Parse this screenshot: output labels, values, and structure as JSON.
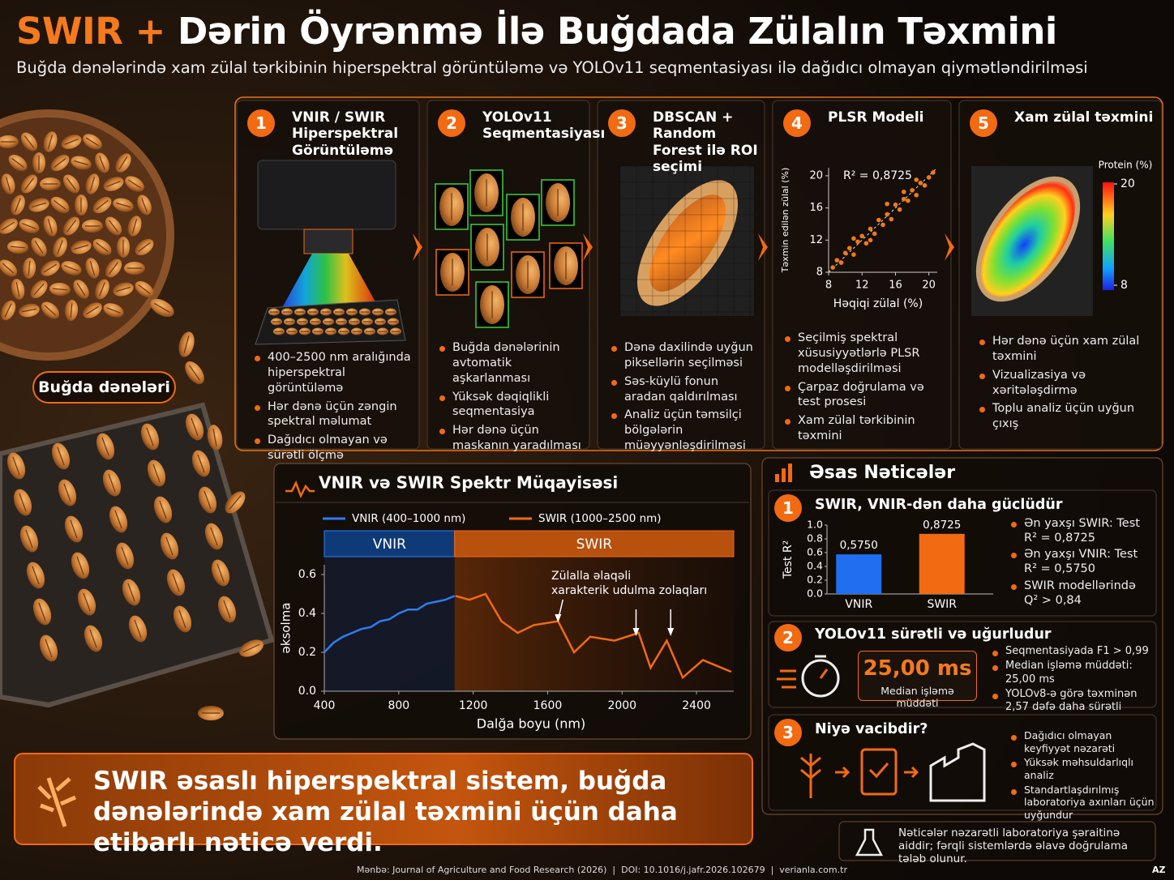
{
  "header": {
    "accent": "SWIR +",
    "title": "Dərin Öyrənmə İlə Buğdada Zülalın Təxmini",
    "subtitle": "Buğda dənələrində xam zülal tərkibinin hiperspektral görüntüləmə və YOLOv11 seqmentasiyası ilə dağıdıcı olmayan qiymətləndirilməsi"
  },
  "photo_label": "Buğda dənələri",
  "steps": [
    {
      "number": 1,
      "title": "VNIR / SWIR Hiperspektral Görüntüləmə",
      "bullets": [
        "400–2500 nm aralığında hiperspektral görüntüləmə",
        "Hər dənə üçün zəngin spektral məlumat",
        "Dağıdıcı olmayan və sürətli ölçmə"
      ]
    },
    {
      "number": 2,
      "title": "YOLOv11 Seqmentasiyası",
      "bullets": [
        "Buğda dənələrinin avtomatik aşkarlanması",
        "Yüksək dəqiqlikli seqmentasiya",
        "Hər dənə üçün maskanın yaradılması"
      ]
    },
    {
      "number": 3,
      "title": "DBSCAN + Random Forest ilə ROI seçimi",
      "bullets": [
        "Dənə daxilində uyğun piksellərin seçilməsi",
        "Səs-küylü fonun aradan qaldırılması",
        "Analiz üçün təmsilçi bölgələrin müəyyənləşdirilməsi"
      ]
    },
    {
      "number": 4,
      "title": "PLSR Modeli",
      "bullets": [
        "Seçilmiş spektral xüsusiyyətlərlə PLSR modelləşdirilməsi",
        "Çarpaz doğrulama və test prosesi",
        "Xam zülal tərkibinin təxmini"
      ]
    },
    {
      "number": 5,
      "title": "Xam zülal təxmini",
      "bullets": [
        "Hər dənə üçün xam zülal təxmini",
        "Vizualizasiya və xəritələşdirmə",
        "Toplu analiz üçün uyğun çıxış"
      ]
    }
  ],
  "colorbar": {
    "title": "Protein (%)",
    "lim": [
      8,
      20
    ],
    "ticks": [
      8,
      20
    ]
  },
  "chart_data": [
    {
      "type": "scatter",
      "annotation": "R² = 0,8725",
      "xlabel": "Həqiqi zülal (%)",
      "ylabel": "Təxmin edilən zülal (%)",
      "color": "#f07a1a",
      "x": [
        8.5,
        9,
        9.5,
        10,
        10.5,
        11,
        11.5,
        12,
        12.5,
        13,
        13.5,
        14,
        14.5,
        15,
        15.5,
        16,
        16.5,
        17,
        17.5,
        18,
        18.5,
        19,
        19.5,
        20,
        20.5,
        13,
        11,
        17,
        15,
        18.5
      ],
      "values": [
        8.6,
        9.5,
        9.2,
        10.4,
        11,
        10.2,
        11.8,
        12.5,
        11.6,
        13.4,
        12.8,
        14.5,
        13.9,
        15.2,
        14.6,
        16.4,
        15.8,
        17.1,
        16.9,
        18.2,
        17.6,
        19.1,
        18.8,
        19.8,
        20.4,
        12,
        12.2,
        18,
        16.5,
        19.5
      ],
      "xlim": [
        8,
        21
      ],
      "ylim": [
        8,
        21
      ],
      "xticks": [
        8,
        12,
        16,
        20
      ],
      "yticks": [
        8,
        12,
        16,
        20
      ]
    },
    {
      "type": "line",
      "title": "VNIR və SWIR Spektr Müqayisəsi",
      "xlabel": "Dalğa boyu (nm)",
      "ylabel": "əksolma",
      "series": [
        {
          "name": "VNIR (400–1000 nm)",
          "color": "#2f7cf0",
          "x": [
            400,
            450,
            500,
            550,
            600,
            650,
            700,
            750,
            800,
            850,
            900,
            950,
            1000,
            1050,
            1100
          ],
          "values": [
            0.2,
            0.25,
            0.28,
            0.3,
            0.32,
            0.33,
            0.36,
            0.37,
            0.4,
            0.42,
            0.42,
            0.45,
            0.46,
            0.47,
            0.49
          ]
        },
        {
          "name": "SWIR (1000–2500 nm)",
          "color": "#f26a12",
          "x": [
            1105,
            1180,
            1266,
            1352,
            1439,
            1526,
            1656,
            1742,
            1829,
            1959,
            2089,
            2153,
            2240,
            2326,
            2434,
            2586
          ],
          "values": [
            0.49,
            0.47,
            0.5,
            0.36,
            0.3,
            0.34,
            0.36,
            0.2,
            0.28,
            0.26,
            0.3,
            0.12,
            0.26,
            0.07,
            0.16,
            0.1
          ]
        }
      ],
      "regions": [
        {
          "label": "VNIR",
          "from": 400,
          "to": 1100
        },
        {
          "label": "SWIR",
          "from": 1100,
          "to": 2600
        }
      ],
      "annotation": [
        "Zülalla əlaqəli",
        "xarakterik udulma zolaqları"
      ],
      "annotation_x": [
        1656,
        2075,
        2261
      ],
      "xlim": [
        400,
        2600
      ],
      "ylim": [
        0,
        0.65
      ],
      "xticks": [
        400,
        800,
        1200,
        1600,
        2000,
        2400
      ],
      "yticks": [
        {
          "value": 0,
          "label": "0.0"
        },
        0.2,
        0.4,
        0.6
      ]
    },
    {
      "type": "bar",
      "ylabel": "Test R²",
      "categories": [
        "VNIR",
        "SWIR"
      ],
      "values": [
        0.575,
        0.8725
      ],
      "value_labels": [
        "0,5750",
        "0,8725"
      ],
      "colors": [
        "#1f6ff0",
        "#f26a12"
      ],
      "ylim": [
        0,
        1
      ],
      "yticks": [
        {
          "value": 0,
          "label": "0.0"
        },
        0.2,
        0.4,
        0.6,
        0.8,
        {
          "value": 1,
          "label": "1.0"
        }
      ]
    }
  ],
  "results": {
    "title": "Əsas Nəticələr",
    "cards": [
      {
        "number": 1,
        "title": "SWIR, VNIR-dən daha güclüdür",
        "bullets": [
          "Ən yaxşı SWIR: Test R² = 0,8725",
          "Ən yaxşı VNIR: Test R² = 0,5750",
          "SWIR modellərində Q² > 0,84"
        ]
      },
      {
        "number": 2,
        "title": "YOLOv11 sürətli və uğurludur",
        "metric": "25,00 ms",
        "metric_label": "Median işləmə müddəti",
        "bullets": [
          "Seqmentasiyada F1 > 0,99",
          "Median işləmə müddəti: 25,00 ms",
          "YOLOv8-ə görə təxminən 2,57 dəfə daha sürətli"
        ]
      },
      {
        "number": 3,
        "title": "Niyə vacibdir?",
        "bullets": [
          "Dağıdıcı olmayan keyfiyyət nəzarəti",
          "Yüksək məhsuldarlıqlı analiz",
          "Standartlaşdırılmış laboratoriya axınları üçün uyğundur"
        ]
      }
    ]
  },
  "conclusion": "SWIR əsaslı hiperspektral sistem, buğda dənələrində xam zülal təxmini üçün daha etibarlı nəticə verdi.",
  "note": "Nəticələr nəzarətli laboratoriya şəraitinə aiddir; fərqli sistemlərdə əlavə doğrulama tələb olunur.",
  "footer": {
    "source": "Mənbə: Journal of Agriculture and Food Research (2026)  |  DOI: 10.1016/j.jafr.2026.102679  |  verianla.com.tr",
    "lang": "AZ"
  }
}
